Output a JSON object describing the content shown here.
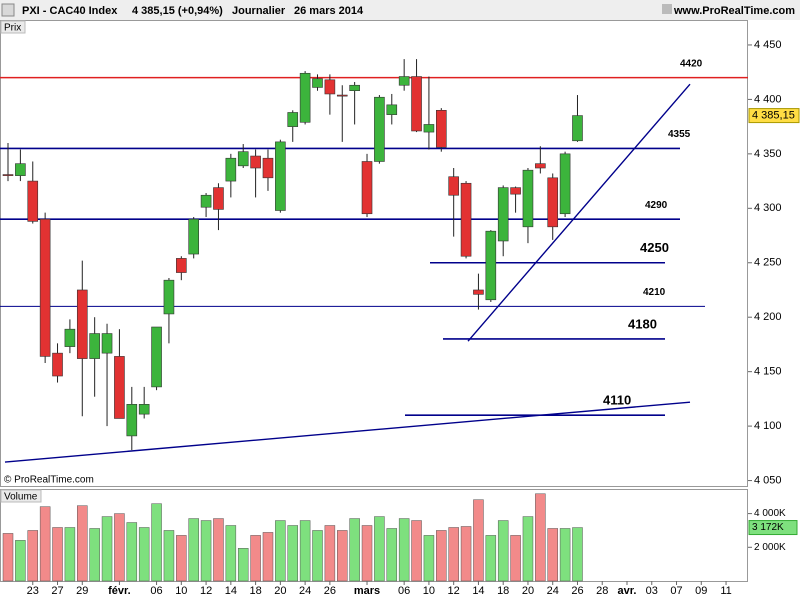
{
  "chart_data": {
    "type": "candlestick",
    "header": {
      "symbol": "PXI - CAC40 Index",
      "quote": "4 385,15 (+0,94%)",
      "period": "Journalier",
      "date": "26 mars 2014",
      "site": "www.ProRealTime.com"
    },
    "price_panel_label": "Prix",
    "volume_panel_label": "Volume",
    "copyright": "© ProRealTime.com",
    "categories": [
      null,
      null,
      "23",
      null,
      "27",
      null,
      "29",
      null,
      null,
      "févr.",
      null,
      null,
      "06",
      null,
      "10",
      null,
      "12",
      null,
      "14",
      null,
      "18",
      null,
      "20",
      null,
      "24",
      null,
      "26",
      null,
      null,
      "mars",
      null,
      null,
      "06",
      null,
      "10",
      null,
      "12",
      null,
      "14",
      null,
      "18",
      null,
      "20",
      null,
      "24",
      null,
      "26",
      null,
      "28",
      null,
      "avr.",
      null,
      "03",
      null,
      "07",
      null,
      "09",
      null,
      "11"
    ],
    "open": [
      4331,
      4330,
      4325,
      4290,
      4167,
      4173,
      4225,
      4162,
      4167,
      4164,
      4091,
      4111,
      4136,
      4203,
      4254,
      4258,
      4301,
      4319,
      4325,
      4339,
      4348,
      4346,
      4298,
      4375,
      4379,
      4411,
      4418,
      4404,
      4408,
      4343,
      4343,
      4386,
      4413,
      4421,
      4370,
      4390,
      4329,
      4323,
      4225,
      4216,
      4270,
      4319,
      4283,
      4341,
      4328,
      4295,
      4362,
      null,
      null,
      null,
      null,
      null,
      null,
      null,
      null,
      null,
      null,
      null,
      null
    ],
    "high": [
      4360,
      4354,
      4343,
      4296,
      4176,
      4198,
      4252,
      4200,
      4194,
      4189,
      4136,
      4136,
      4191,
      4236,
      4256,
      4292,
      4314,
      4323,
      4350,
      4359,
      4354,
      4354,
      4363,
      4390,
      4426,
      4423,
      4423,
      4413,
      4416,
      4350,
      4404,
      4405,
      4437,
      4437,
      4421,
      4392,
      4337,
      4325,
      4240,
      4280,
      4321,
      4320,
      4337,
      4357,
      4332,
      4352,
      4404,
      null,
      null,
      null,
      null,
      null,
      null,
      null,
      null,
      null,
      null,
      null,
      null
    ],
    "low": [
      4325,
      4325,
      4286,
      4158,
      4140,
      4167,
      4109,
      4127,
      4100,
      4107,
      4078,
      4107,
      4133,
      4176,
      4234,
      4254,
      4292,
      4280,
      4310,
      4337,
      4310,
      4316,
      4296,
      4361,
      4377,
      4408,
      4386,
      4361,
      4377,
      4292,
      4341,
      4377,
      4408,
      4370,
      4354,
      4352,
      4274,
      4254,
      4207,
      4214,
      4256,
      4296,
      4268,
      4332,
      4271,
      4292,
      4361,
      null,
      null,
      null,
      null,
      null,
      null,
      null,
      null,
      null,
      null,
      null,
      null
    ],
    "close": [
      4330,
      4341,
      4288,
      4164,
      4146,
      4189,
      4162,
      4185,
      4185,
      4107,
      4120,
      4120,
      4191,
      4234,
      4241,
      4290,
      4312,
      4299,
      4346,
      4352,
      4337,
      4328,
      4361,
      4388,
      4424,
      4419,
      4405,
      4403,
      4413,
      4295,
      4402,
      4395,
      4421,
      4371,
      4377,
      4356,
      4312,
      4256,
      4221,
      4279,
      4319,
      4313,
      4335,
      4337,
      4283,
      4350,
      4385.15,
      null,
      null,
      null,
      null,
      null,
      null,
      null,
      null,
      null,
      null,
      null,
      null
    ],
    "last_price_label": "4 385,15",
    "volume": [
      2824,
      2412,
      3000,
      4412,
      3176,
      3176,
      4470,
      3118,
      3824,
      4000,
      3470,
      3176,
      4588,
      3000,
      2706,
      3706,
      3588,
      3706,
      3294,
      1941,
      2706,
      2882,
      3588,
      3294,
      3588,
      3000,
      3294,
      3000,
      3706,
      3294,
      3824,
      3118,
      3706,
      3588,
      2706,
      3000,
      3176,
      3235,
      4824,
      2706,
      3588,
      2706,
      3824,
      5176,
      3118,
      3118,
      3172,
      null,
      null,
      null,
      null,
      null,
      null,
      null,
      null,
      null,
      null,
      null,
      null
    ],
    "last_volume_label": "3 172K",
    "up_color": "#3cb43c",
    "down_color": "#e23232",
    "up_volume_color": "#7ee07e",
    "down_volume_color": "#f28a8a",
    "ylim": [
      4045,
      4472
    ],
    "yticks": [
      {
        "value": 4050,
        "label": "4 050"
      },
      {
        "value": 4100,
        "label": "4 100"
      },
      {
        "value": 4150,
        "label": "4 150"
      },
      {
        "value": 4200,
        "label": "4 200"
      },
      {
        "value": 4250,
        "label": "4 250"
      },
      {
        "value": 4300,
        "label": "4 300"
      },
      {
        "value": 4350,
        "label": "4 350"
      },
      {
        "value": 4400,
        "label": "4 400"
      },
      {
        "value": 4450,
        "label": "4 450"
      }
    ],
    "y2lim": [
      0,
      5400
    ],
    "y2ticks": [
      {
        "value": 2000,
        "label": "2 000K"
      },
      {
        "value": 4000,
        "label": "4 000K"
      }
    ],
    "levels": [
      {
        "value": 4420,
        "label": "4420",
        "color": "#e02020"
      },
      {
        "value": 4355,
        "label": "4355",
        "color": "#00008b"
      },
      {
        "value": 4290,
        "label": "4290",
        "color": "#00008b"
      },
      {
        "value": 4250,
        "label": "4250",
        "color": "#00008b"
      },
      {
        "value": 4210,
        "label": "4210",
        "color": "#00008b"
      },
      {
        "value": 4180,
        "label": "4180",
        "color": "#00008b"
      },
      {
        "value": 4110,
        "label": "4110",
        "color": "#00008b"
      }
    ],
    "trendlines": [
      {
        "values": [
          4067,
          4122
        ],
        "color": "#00008b"
      },
      {
        "values": [
          4178,
          4414
        ],
        "color": "#00008b"
      }
    ]
  }
}
